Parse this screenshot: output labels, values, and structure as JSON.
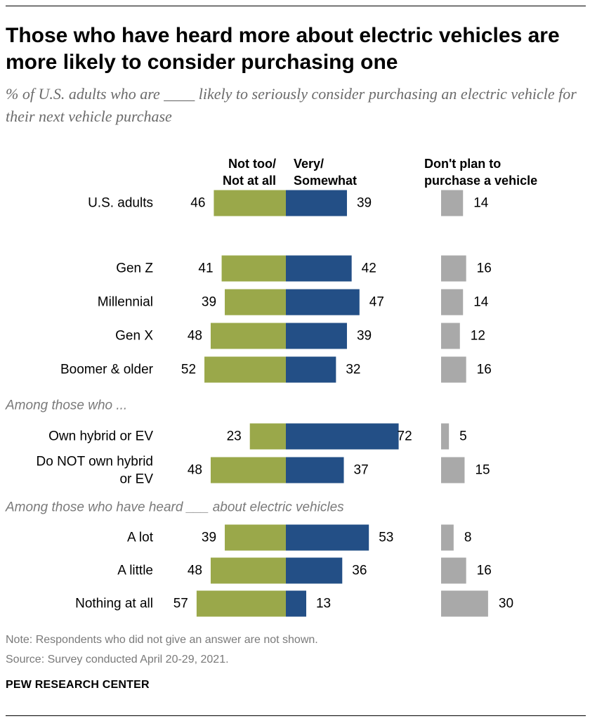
{
  "title": "Those who have heard more about electric vehicles are more likely to consider purchasing one",
  "subtitle": "% of U.S. adults who are ____ likely to seriously consider purchasing an electric vehicle for their next vehicle purchase",
  "note": "Note: Respondents who did not give an answer are not shown.",
  "source": "Source: Survey conducted April 20-29, 2021.",
  "brand": "PEW RESEARCH CENTER",
  "chart_data": {
    "type": "bar",
    "orientation": "diverging-horizontal",
    "column_headers": {
      "not_likely": [
        "Not too/",
        "Not at all"
      ],
      "likely": [
        "Very/",
        "Somewhat"
      ],
      "no_plan": [
        "Don't plan to",
        "purchase a vehicle"
      ]
    },
    "section_headers": [
      "Among those who ...",
      "Among those who have heard ___ about electric vehicles"
    ],
    "categories": [
      [
        "U.S. adults"
      ],
      [
        "Gen Z"
      ],
      [
        "Millennial"
      ],
      [
        "Gen X"
      ],
      [
        "Boomer & older"
      ],
      [
        "Own hybrid or EV"
      ],
      [
        "Do NOT own hybrid",
        "or EV"
      ],
      [
        "A lot"
      ],
      [
        "A little"
      ],
      [
        "Nothing at all"
      ]
    ],
    "series": [
      {
        "name": "Not too/Not at all",
        "color": "#9aa84a",
        "values": [
          46,
          41,
          39,
          48,
          52,
          23,
          48,
          39,
          48,
          57
        ]
      },
      {
        "name": "Very/Somewhat",
        "color": "#234f86",
        "values": [
          39,
          42,
          47,
          39,
          32,
          72,
          37,
          53,
          36,
          13
        ]
      },
      {
        "name": "Don't plan to purchase a vehicle",
        "color": "#a9a9a9",
        "values": [
          14,
          16,
          14,
          12,
          16,
          5,
          15,
          8,
          16,
          30
        ]
      }
    ]
  }
}
